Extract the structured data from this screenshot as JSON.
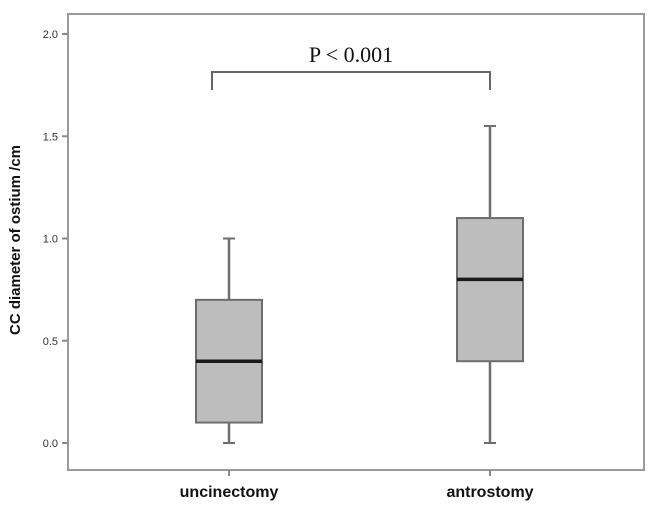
{
  "chart_data": {
    "type": "box",
    "title": "",
    "xlabel": "",
    "ylabel": "CC diameter of ostium /cm",
    "ylim": [
      0.0,
      2.0
    ],
    "yticks": [
      "0.0",
      "0.5",
      "1.0",
      "1.5",
      "2.0"
    ],
    "categories": [
      "uncinectomy",
      "antrostomy"
    ],
    "boxes": [
      {
        "category": "uncinectomy",
        "min": 0.0,
        "q1": 0.1,
        "median": 0.4,
        "q3": 0.7,
        "max": 1.0
      },
      {
        "category": "antrostomy",
        "min": 0.0,
        "q1": 0.4,
        "median": 0.8,
        "q3": 1.1,
        "max": 1.55
      }
    ],
    "annotation": {
      "text": "P < 0.001",
      "between": [
        "uncinectomy",
        "antrostomy"
      ]
    },
    "grid": false,
    "colors": {
      "box_fill": "#bdbdbd",
      "box_stroke": "#6e6e6e",
      "median": "#1a1a1a",
      "axes": "#8a8a8a"
    }
  }
}
